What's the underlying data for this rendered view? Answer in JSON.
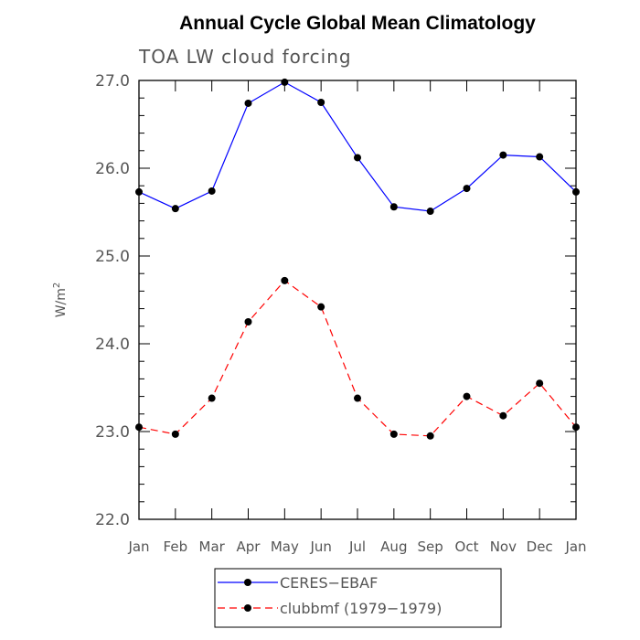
{
  "chart_data": {
    "type": "line",
    "title": "Annual Cycle Global Mean Climatology",
    "subtitle": "TOA LW cloud forcing",
    "xlabel": "",
    "ylabel": "W/m",
    "ylabel_superscript": "2",
    "categories": [
      "Jan",
      "Feb",
      "Mar",
      "Apr",
      "May",
      "Jun",
      "Jul",
      "Aug",
      "Sep",
      "Oct",
      "Nov",
      "Dec",
      "Jan"
    ],
    "ylim": [
      22.0,
      27.0
    ],
    "yticks": [
      "22.0",
      "23.0",
      "24.0",
      "25.0",
      "26.0",
      "27.0"
    ],
    "ytick_values": [
      22.0,
      23.0,
      24.0,
      25.0,
      26.0,
      27.0
    ],
    "y_minor_step": 0.2,
    "grid": false,
    "legend_position": "bottom-center",
    "series": [
      {
        "name": "CERES−EBAF",
        "color": "#0000ff",
        "line_style": "solid",
        "values": [
          25.73,
          25.54,
          25.74,
          26.74,
          26.98,
          26.75,
          26.12,
          25.56,
          25.51,
          25.77,
          26.15,
          26.13,
          25.73
        ]
      },
      {
        "name": "clubbmf (1979−1979)",
        "color": "#ff0000",
        "line_style": "dashed",
        "values": [
          23.05,
          22.97,
          23.38,
          24.25,
          24.72,
          24.42,
          23.38,
          22.97,
          22.95,
          23.4,
          23.18,
          23.55,
          23.05
        ]
      }
    ]
  }
}
